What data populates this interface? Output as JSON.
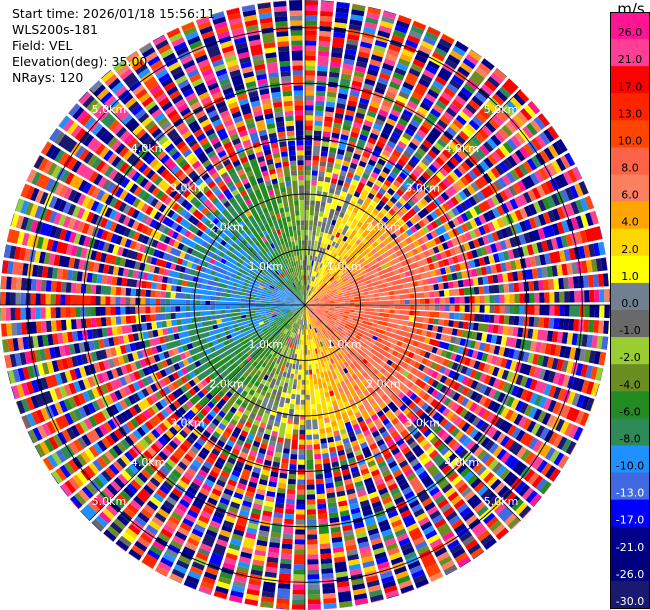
{
  "header": {
    "start_time": "Start time: 2026/01/18 15:56:11",
    "instrument": "WLS200s-181",
    "field": "Field: VEL",
    "elevation": "Elevation(deg): 35.00",
    "nrays": "NRays: 120"
  },
  "chart_data": {
    "type": "heatmap",
    "projection": "polar PPI scan",
    "field": "VEL",
    "units": "m/s",
    "n_rays": 120,
    "elevation_deg": 35.0,
    "range_rings_km": [
      1.0,
      2.0,
      3.0,
      4.0,
      5.0
    ],
    "range_ring_labels": [
      "1.0km",
      "2.0km",
      "3.0km",
      "4.0km",
      "5.0km"
    ],
    "max_range_km": 5.5,
    "spoke_angles_deg": [
      0,
      45,
      90,
      135,
      180,
      225,
      270,
      315
    ],
    "colorbar": {
      "title": "m/s",
      "tick_labels": [
        "26.0",
        "21.0",
        "17.0",
        "13.0",
        "10.0",
        "8.0",
        "6.0",
        "4.0",
        "2.0",
        "1.0",
        "0.0",
        "-1.0",
        "-2.0",
        "-4.0",
        "-6.0",
        "-8.0",
        "-10.0",
        "-13.0",
        "-17.0",
        "-21.0",
        "-26.0",
        "-30.0"
      ],
      "colors": [
        "#ff1493",
        "#ff3e96",
        "#ff0000",
        "#ff2400",
        "#ff4500",
        "#ff6347",
        "#fa8060",
        "#ffa500",
        "#ffd700",
        "#ffff00",
        "#708090",
        "#696969",
        "#9acd32",
        "#6b8e23",
        "#228b22",
        "#2e8b57",
        "#1e90ff",
        "#4169e1",
        "#0000ff",
        "#00008b",
        "#000080",
        "#191970"
      ]
    },
    "velocity_pattern": {
      "description_free": true,
      "inner_direction_deg": 100,
      "inner_amplitude_ms": 9,
      "inner_radius_km": 2.0,
      "noise_radius_km": 2.8
    }
  }
}
